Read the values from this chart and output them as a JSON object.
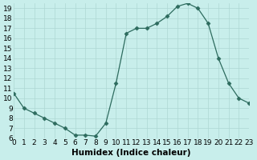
{
  "x": [
    0,
    1,
    2,
    3,
    4,
    5,
    6,
    7,
    8,
    9,
    10,
    11,
    12,
    13,
    14,
    15,
    16,
    17,
    18,
    19,
    20,
    21,
    22,
    23
  ],
  "y": [
    10.5,
    9.0,
    8.5,
    8.0,
    7.5,
    7.0,
    6.3,
    6.3,
    6.2,
    7.5,
    11.5,
    16.5,
    17.0,
    17.0,
    17.5,
    18.2,
    19.2,
    19.5,
    19.0,
    17.5,
    14.0,
    11.5,
    10.0,
    9.5
  ],
  "xlim": [
    0,
    23
  ],
  "ylim": [
    6,
    19.5
  ],
  "xticks": [
    0,
    1,
    2,
    3,
    4,
    5,
    6,
    7,
    8,
    9,
    10,
    11,
    12,
    13,
    14,
    15,
    16,
    17,
    18,
    19,
    20,
    21,
    22,
    23
  ],
  "yticks": [
    6,
    7,
    8,
    9,
    10,
    11,
    12,
    13,
    14,
    15,
    16,
    17,
    18,
    19
  ],
  "xlabel": "Humidex (Indice chaleur)",
  "line_color": "#2d6b5e",
  "marker": "D",
  "marker_size": 2.5,
  "bg_color": "#c8eeeb",
  "grid_color": "#aed8d4",
  "xlabel_fontsize": 7.5,
  "tick_fontsize": 6.5
}
